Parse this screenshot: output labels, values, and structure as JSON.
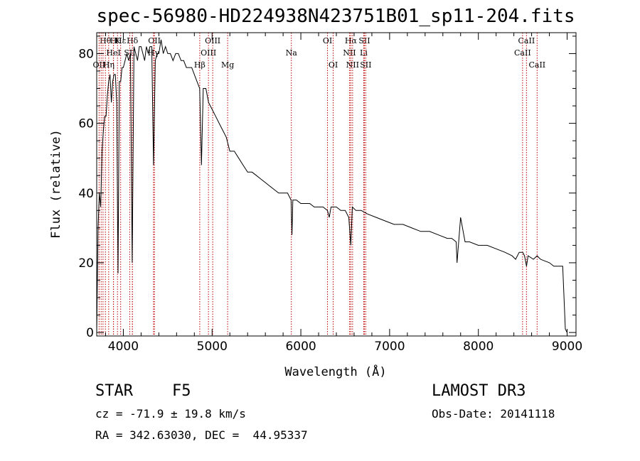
{
  "chart_data": {
    "type": "line",
    "title": "spec-56980-HD224938N423751B01_sp11-204.fits",
    "xlabel": "Wavelength (Å)",
    "ylabel": "Flux (relative)",
    "xlim": [
      3700,
      9100
    ],
    "ylim": [
      -1,
      86
    ],
    "x_ticks": [
      4000,
      5000,
      6000,
      7000,
      8000,
      9000
    ],
    "y_ticks": [
      0,
      20,
      40,
      60,
      80
    ],
    "grid": false,
    "legend": "none",
    "series": [
      {
        "x": [
          3700,
          3715,
          3730,
          3745,
          3760,
          3775,
          3790,
          3805,
          3820,
          3835,
          3850,
          3865,
          3880,
          3895,
          3910,
          3925,
          3940,
          3955,
          3970,
          3985,
          4000,
          4020,
          4040,
          4060,
          4080,
          4100,
          4120,
          4140,
          4160,
          4180,
          4200,
          4220,
          4240,
          4260,
          4280,
          4300,
          4320,
          4340,
          4360,
          4380,
          4400,
          4425,
          4450,
          4475,
          4500,
          4530,
          4560,
          4590,
          4620,
          4650,
          4680,
          4710,
          4740,
          4770,
          4800,
          4830,
          4860,
          4880,
          4900,
          4930,
          4960,
          5000,
          5040,
          5080,
          5120,
          5160,
          5200,
          5250,
          5300,
          5350,
          5400,
          5450,
          5500,
          5550,
          5600,
          5650,
          5700,
          5750,
          5800,
          5850,
          5890,
          5900,
          5910,
          5950,
          6000,
          6050,
          6100,
          6150,
          6200,
          6250,
          6300,
          6320,
          6340,
          6400,
          6450,
          6500,
          6540,
          6563,
          6580,
          6620,
          6680,
          6750,
          6850,
          6950,
          7050,
          7150,
          7250,
          7350,
          7450,
          7550,
          7650,
          7700,
          7750,
          7760,
          7800,
          7850,
          7900,
          8000,
          8100,
          8200,
          8300,
          8380,
          8420,
          8460,
          8500,
          8520,
          8542,
          8560,
          8620,
          8662,
          8700,
          8800,
          8850,
          8900,
          8950,
          8980,
          9000
        ],
        "y": [
          0,
          30,
          40,
          36,
          52,
          58,
          62,
          62,
          68,
          72,
          74,
          66,
          72,
          74,
          74,
          66,
          17,
          72,
          72,
          76,
          76,
          78,
          80,
          78,
          80,
          20,
          82,
          80,
          78,
          82,
          82,
          80,
          78,
          82,
          80,
          82,
          82,
          48,
          78,
          80,
          80,
          84,
          80,
          82,
          80,
          80,
          78,
          80,
          80,
          78,
          78,
          76,
          76,
          76,
          74,
          72,
          70,
          48,
          70,
          70,
          66,
          64,
          62,
          60,
          58,
          56,
          52,
          52,
          50,
          48,
          46,
          46,
          45,
          44,
          43,
          42,
          41,
          40,
          40,
          40,
          38,
          28,
          38,
          38,
          37,
          37,
          37,
          36,
          36,
          36,
          35,
          33,
          36,
          36,
          35,
          35,
          33,
          25,
          36,
          35,
          35,
          34,
          33,
          32,
          31,
          31,
          30,
          29,
          29,
          28,
          27,
          27,
          26,
          20,
          33,
          26,
          26,
          25,
          25,
          24,
          23,
          22,
          21,
          23,
          23,
          22,
          19,
          22,
          21,
          22,
          21,
          20,
          19,
          19,
          19,
          1,
          0
        ]
      }
    ],
    "line_markers": [
      {
        "label": "Hθ",
        "x": 3798,
        "row": 1
      },
      {
        "label": "K",
        "x": 3934,
        "row": 1
      },
      {
        "label": "Hδ",
        "x": 4102,
        "row": 1
      },
      {
        "label": "OII",
        "x": 4350,
        "row": 1
      },
      {
        "label": "OIII",
        "x": 5007,
        "row": 1
      },
      {
        "label": "OI",
        "x": 6300,
        "row": 1
      },
      {
        "label": "Hα",
        "x": 6563,
        "row": 1
      },
      {
        "label": "SII",
        "x": 6716,
        "row": 1
      },
      {
        "label": "CaII",
        "x": 8542,
        "row": 1
      },
      {
        "label": "H",
        "x": 3889,
        "row": 1
      },
      {
        "label": "Hε",
        "x": 3970,
        "row": 1
      },
      {
        "label": "HeI",
        "x": 3889,
        "row": 2
      },
      {
        "label": "SII",
        "x": 4072,
        "row": 2
      },
      {
        "label": "Hγ",
        "x": 4340,
        "row": 2
      },
      {
        "label": "OIII",
        "x": 4959,
        "row": 2
      },
      {
        "label": "Na",
        "x": 5893,
        "row": 2
      },
      {
        "label": "NII",
        "x": 6548,
        "row": 2
      },
      {
        "label": "Li",
        "x": 6708,
        "row": 2
      },
      {
        "label": "CaII",
        "x": 8498,
        "row": 2
      },
      {
        "label": "OII",
        "x": 3727,
        "row": 3
      },
      {
        "label": "Hη",
        "x": 3835,
        "row": 3
      },
      {
        "label": "Hβ",
        "x": 4861,
        "row": 3
      },
      {
        "label": "Mg",
        "x": 5175,
        "row": 3
      },
      {
        "label": "OI",
        "x": 6364,
        "row": 3
      },
      {
        "label": "NII",
        "x": 6583,
        "row": 3
      },
      {
        "label": "SII",
        "x": 6731,
        "row": 3
      },
      {
        "label": "CaII",
        "x": 8662,
        "row": 3
      },
      {
        "label": "",
        "x": 3750,
        "row": 0
      },
      {
        "label": "",
        "x": 3771,
        "row": 0
      },
      {
        "label": "",
        "x": 4102,
        "row": 0
      },
      {
        "label": "",
        "x": 6563,
        "row": 0
      }
    ]
  },
  "footer": {
    "object_class": "STAR",
    "subclass": "F5",
    "survey": "LAMOST DR3",
    "redshift": "cz = -71.9 ± 19.8 km/s",
    "obs_date": "Obs-Date: 20141118",
    "coords": "RA = 342.63030, DEC =  44.95337"
  }
}
